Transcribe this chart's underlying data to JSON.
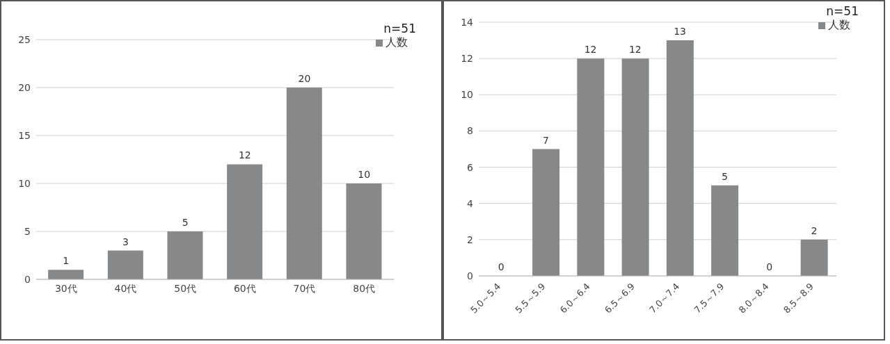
{
  "chart_data": [
    {
      "type": "bar",
      "categories": [
        "30代",
        "40代",
        "50代",
        "60代",
        "70代",
        "80代"
      ],
      "series": [
        {
          "name": "人数",
          "color": "#87888a",
          "values": [
            1,
            3,
            5,
            12,
            20,
            10
          ]
        }
      ],
      "ylim": [
        0,
        25
      ],
      "yticks": [
        0,
        5,
        10,
        15,
        20,
        25
      ],
      "grid": "y",
      "legend": "top right",
      "data_labels": true,
      "annotations": [
        "n=51"
      ]
    },
    {
      "type": "bar",
      "categories": [
        "5.0～5.4",
        "5.5～5.9",
        "6.0～6.4",
        "6.5～6.9",
        "7.0～7.4",
        "7.5～7.9",
        "8.0～8.4",
        "8.5～8.9"
      ],
      "series": [
        {
          "name": "人数",
          "color": "#87888a",
          "values": [
            0,
            7,
            12,
            12,
            13,
            5,
            0,
            2
          ]
        }
      ],
      "ylim": [
        0,
        14
      ],
      "yticks": [
        0,
        2,
        4,
        6,
        8,
        10,
        12,
        14
      ],
      "grid": "y",
      "legend": "top right",
      "data_labels": true,
      "annotations": [
        "n=51"
      ]
    }
  ]
}
